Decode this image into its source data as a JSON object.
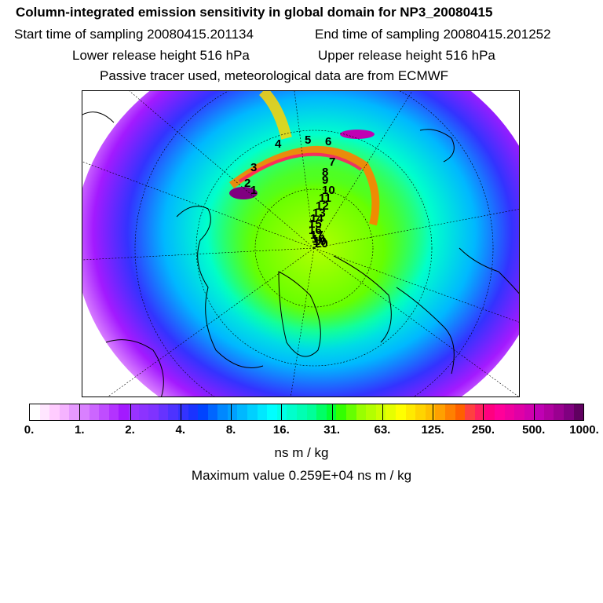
{
  "header": {
    "title": "Column-integrated emission sensitivity in global domain for NP3_20080415",
    "start_label": "Start time of sampling 20080415.201134",
    "end_label": "End time of sampling 20080415.201252",
    "lower_label": "Lower release height  516 hPa",
    "upper_label": "Upper release height  516 hPa",
    "tracer_note": "Passive tracer used, meteorological data are from ECMWF"
  },
  "map": {
    "projection": "polar stereographic (north)",
    "trajectory_labels": [
      "4",
      "5",
      "6",
      "7",
      "8",
      "9",
      "10",
      "11",
      "12",
      "13",
      "14",
      "15",
      "16",
      "17",
      "18",
      "19",
      "20",
      "1",
      "2",
      "3"
    ]
  },
  "colorbar": {
    "tick_labels": [
      "0.",
      "1.",
      "2.",
      "4.",
      "8.",
      "16.",
      "31.",
      "63.",
      "125.",
      "250.",
      "500.",
      "1000."
    ],
    "colors": [
      "#ffffff",
      "#ffe6ff",
      "#ffccff",
      "#f5b3ff",
      "#e699ff",
      "#d980ff",
      "#cc66ff",
      "#bf4dff",
      "#b333ff",
      "#a31aff",
      "#9933ff",
      "#8c33ff",
      "#7f33ff",
      "#6633ff",
      "#4d33ff",
      "#3333ff",
      "#1a33ff",
      "#0044ff",
      "#0066ff",
      "#0088ff",
      "#00a0ff",
      "#00b8ff",
      "#00d0ff",
      "#00e8ff",
      "#00ffff",
      "#00ffe6",
      "#00ffcc",
      "#00ffb3",
      "#00ff99",
      "#00ff66",
      "#00ff33",
      "#33ff00",
      "#66ff00",
      "#99ff00",
      "#b3ff00",
      "#ccff00",
      "#e6ff00",
      "#ffff00",
      "#ffea00",
      "#ffd400",
      "#ffbf00",
      "#ffa000",
      "#ff8000",
      "#ff6000",
      "#ff4040",
      "#ff2060",
      "#ff0080",
      "#ff0099",
      "#f0009f",
      "#e000a6",
      "#d000ad",
      "#c000b3",
      "#b000a0",
      "#9a0090",
      "#800080",
      "#600060"
    ]
  },
  "units": "ns m / kg",
  "max_value": "Maximum value  0.259E+04 ns m / kg"
}
